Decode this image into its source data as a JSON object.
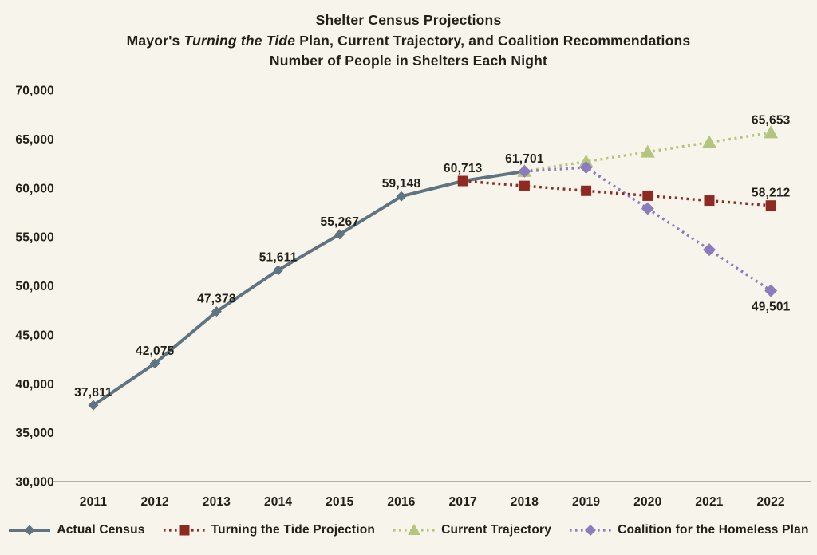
{
  "title": {
    "line1": "Shelter Census Projections",
    "line2_prefix": "Mayor's ",
    "line2_italic": "Turning the Tide",
    "line2_suffix": " Plan, Current Trajectory, and Coalition Recommendations",
    "line3": "Number of People in Shelters Each Night"
  },
  "colors": {
    "background": "#f7f4eb",
    "text": "#212019",
    "axis_line": "#b3afa6",
    "actual": "#5f7380",
    "turning_tide": "#8e2a22",
    "current_trajectory": "#b6c57e",
    "coalition": "#8c7cbe"
  },
  "chart_data": {
    "type": "line",
    "title": "Shelter Census Projections",
    "subtitle": "Mayor's Turning the Tide Plan, Current Trajectory, and Coalition Recommendations",
    "note": "Number of People in Shelters Each Night",
    "grid": false,
    "legend_position": "bottom",
    "x_categories": [
      "2011",
      "2012",
      "2013",
      "2014",
      "2015",
      "2016",
      "2017",
      "2018",
      "2019",
      "2020",
      "2021",
      "2022"
    ],
    "y_axis": {
      "min": 30000,
      "max": 70000,
      "step": 5000,
      "tick_labels": [
        "70,000",
        "65,000",
        "60,000",
        "55,000",
        "50,000",
        "45,000",
        "40,000",
        "35,000",
        "30,000"
      ]
    },
    "draw_order": [
      0,
      2,
      3,
      1
    ],
    "series": [
      {
        "name": "Actual Census",
        "color_key": "actual",
        "line_style": "solid",
        "marker": "diamond",
        "marker_size": 6.5,
        "points": [
          {
            "year": "2011",
            "value": 37811,
            "label": "37,811"
          },
          {
            "year": "2012",
            "value": 42075,
            "label": "42,075"
          },
          {
            "year": "2013",
            "value": 47378,
            "label": "47,378"
          },
          {
            "year": "2014",
            "value": 51611,
            "label": "51,611"
          },
          {
            "year": "2015",
            "value": 55267,
            "label": "55,267"
          },
          {
            "year": "2016",
            "value": 59148,
            "label": "59,148"
          },
          {
            "year": "2017",
            "value": 60713,
            "label": "60,713"
          },
          {
            "year": "2018",
            "value": 61701,
            "label": "61,701"
          }
        ]
      },
      {
        "name": "Turning the Tide Projection",
        "color_key": "turning_tide",
        "line_style": "dotted",
        "marker": "square",
        "marker_size": 6.5,
        "points": [
          {
            "year": "2017",
            "value": 60713
          },
          {
            "year": "2018",
            "value": 60213
          },
          {
            "year": "2019",
            "value": 59713
          },
          {
            "year": "2020",
            "value": 59212
          },
          {
            "year": "2021",
            "value": 58712
          },
          {
            "year": "2022",
            "value": 58212,
            "label": "58,212"
          }
        ]
      },
      {
        "name": "Current Trajectory",
        "color_key": "current_trajectory",
        "line_style": "dotted",
        "marker": "triangle",
        "marker_size": 8,
        "points": [
          {
            "year": "2018",
            "value": 61701
          },
          {
            "year": "2019",
            "value": 62689
          },
          {
            "year": "2020",
            "value": 63677
          },
          {
            "year": "2021",
            "value": 64665
          },
          {
            "year": "2022",
            "value": 65653,
            "label": "65,653"
          }
        ]
      },
      {
        "name": "Coalition for the Homeless Plan",
        "color_key": "coalition",
        "line_style": "dotted",
        "marker": "diamond",
        "marker_size": 8,
        "points": [
          {
            "year": "2018",
            "value": 61701
          },
          {
            "year": "2019",
            "value": 62101
          },
          {
            "year": "2020",
            "value": 57901
          },
          {
            "year": "2021",
            "value": 53701
          },
          {
            "year": "2022",
            "value": 49501,
            "label": "49,501",
            "label_side": "below"
          }
        ]
      }
    ]
  }
}
